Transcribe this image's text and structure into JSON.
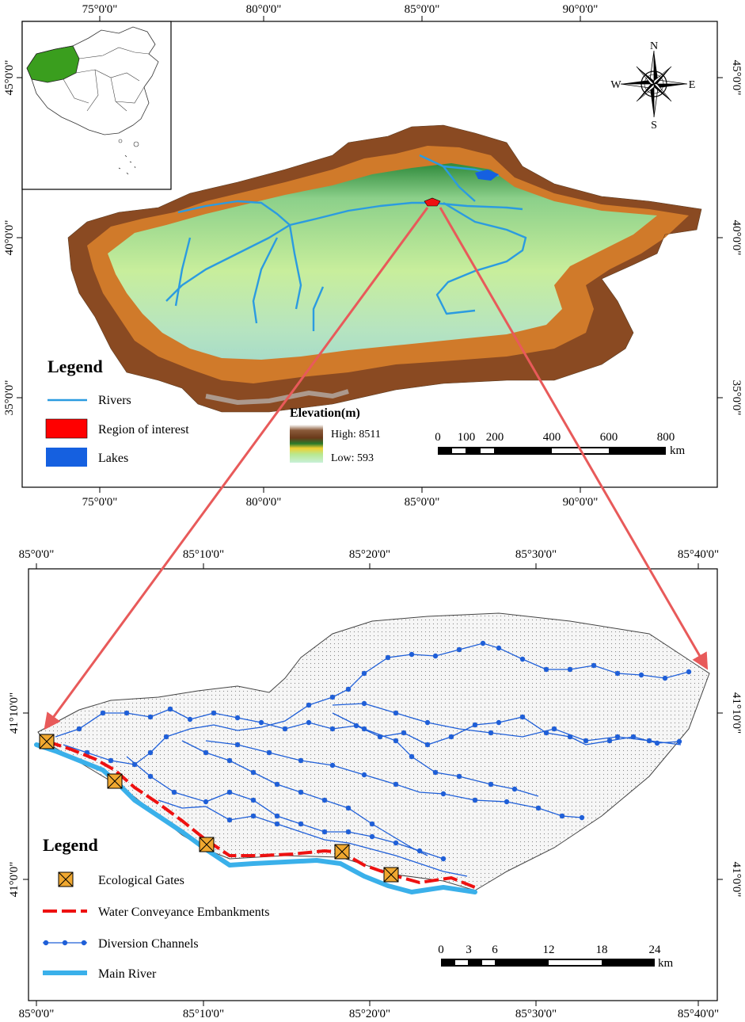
{
  "top_map": {
    "lon_labels": [
      "75°0'0\"",
      "80°0'0\"",
      "85°0'0\"",
      "90°0'0\""
    ],
    "lat_labels": [
      "45°0'0\"",
      "40°0'0\"",
      "35°0'0\""
    ],
    "compass": {
      "n": "N",
      "s": "S",
      "e": "E",
      "w": "W"
    },
    "legend": {
      "title": "Legend",
      "items": [
        {
          "label": "Rivers",
          "color": "#2b9be0"
        },
        {
          "label": "Region of interest",
          "color": "#ff0000"
        },
        {
          "label": "Lakes",
          "color": "#1560e0"
        }
      ]
    },
    "elevation": {
      "title": "Elevation(m)",
      "high": "High: 8511",
      "low": "Low: 593"
    },
    "scale_bar": {
      "ticks": [
        "0",
        "100",
        "200",
        "400",
        "600",
        "800"
      ],
      "unit": "km"
    }
  },
  "bottom_map": {
    "lon_labels": [
      "85°0'0\"",
      "85°10'0\"",
      "85°20'0\"",
      "85°30'0\"",
      "85°40'0\""
    ],
    "lat_labels": [
      "41°10'0\"",
      "41°0'0\""
    ],
    "legend": {
      "title": "Legend",
      "items": [
        {
          "label": "Ecological Gates",
          "color": "#f0a830"
        },
        {
          "label": "Water Conveyance Embankments",
          "color": "#ee1111"
        },
        {
          "label": "Diversion Channels",
          "color": "#1f5fd8"
        },
        {
          "label": "Main River",
          "color": "#3ab0ea"
        }
      ]
    },
    "scale_bar": {
      "ticks": [
        "0",
        "3",
        "6",
        "12",
        "18",
        "24"
      ],
      "unit": "km"
    }
  },
  "arrow_color": "#e85a5a"
}
